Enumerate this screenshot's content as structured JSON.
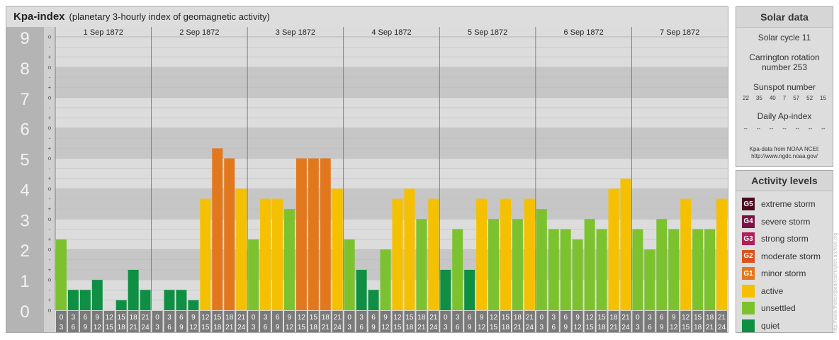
{
  "header": {
    "title": "Kpa-index",
    "subtitle": "(planetary 3-hourly index of geomagnetic activity)"
  },
  "chart_data": {
    "type": "bar",
    "ylim": [
      0,
      9
    ],
    "y_ticks": [
      "0",
      "1",
      "2",
      "3",
      "4",
      "5",
      "6",
      "7",
      "8",
      "9"
    ],
    "sub_ticks": [
      "o",
      "+",
      "-"
    ],
    "days": [
      "1 Sep 1872",
      "2 Sep 1872",
      "3 Sep 1872",
      "4 Sep 1872",
      "5 Sep 1872",
      "6 Sep 1872",
      "7 Sep 1872"
    ],
    "interval_labels": [
      [
        "0",
        "3"
      ],
      [
        "3",
        "6"
      ],
      [
        "6",
        "9"
      ],
      [
        "9",
        "12"
      ],
      [
        "12",
        "15"
      ],
      [
        "15",
        "18"
      ],
      [
        "18",
        "21"
      ],
      [
        "21",
        "24"
      ]
    ],
    "values": [
      [
        2.33,
        0.67,
        0.67,
        1.0,
        0.0,
        0.33,
        1.33,
        0.67
      ],
      [
        0.0,
        0.67,
        0.67,
        0.33,
        3.67,
        5.33,
        5.0,
        4.0
      ],
      [
        2.33,
        3.67,
        3.67,
        3.33,
        5.0,
        5.0,
        5.0,
        4.0
      ],
      [
        2.33,
        1.33,
        0.67,
        2.0,
        3.67,
        4.0,
        3.0,
        3.67
      ],
      [
        1.33,
        2.67,
        1.33,
        3.67,
        3.0,
        3.67,
        3.0,
        3.67
      ],
      [
        3.33,
        2.67,
        2.67,
        2.33,
        3.0,
        2.67,
        4.0,
        4.33
      ],
      [
        2.67,
        2.0,
        3.0,
        2.67,
        3.67,
        2.67,
        2.67,
        3.67
      ]
    ],
    "colors": {
      "quiet": "#0f8f44",
      "unsettled": "#7cc22f",
      "active": "#f5c000",
      "G1": "#e2781e",
      "G2": "#d9531e",
      "G3": "#b0205a",
      "G4": "#7a1245",
      "G5": "#4a0a20"
    }
  },
  "solar": {
    "title": "Solar data",
    "cycle": "Solar cycle 11",
    "rotation_line1": "Carrington rotation",
    "rotation_line2": "number 253",
    "sunspot_label": "Sunspot number",
    "sunspot_values": [
      "22",
      "35",
      "40",
      "7",
      "57",
      "52",
      "15"
    ],
    "ap_label": "Daily Ap-index",
    "ap_values": [
      "--",
      "--",
      "--",
      "--",
      "--",
      "--",
      "--"
    ],
    "source_line1": "Kpa-data from NOAA NCEI:",
    "source_line2": "http://www.ngdc.noaa.gov/"
  },
  "activity": {
    "title": "Activity levels",
    "levels": [
      {
        "badge": "G5",
        "label": "extreme storm",
        "color": "#4a0a20"
      },
      {
        "badge": "G4",
        "label": "severe storm",
        "color": "#7a1245"
      },
      {
        "badge": "G3",
        "label": "strong storm",
        "color": "#b0205a"
      },
      {
        "badge": "G2",
        "label": "moderate storm",
        "color": "#d9531e"
      },
      {
        "badge": "G1",
        "label": "minor storm",
        "color": "#e2781e"
      },
      {
        "badge": "",
        "label": "active",
        "color": "#f5c000"
      },
      {
        "badge": "",
        "label": "unsettled",
        "color": "#7cc22f"
      },
      {
        "badge": "",
        "label": "quiet",
        "color": "#0f8f44"
      }
    ]
  },
  "credit": "http://www.theeuropeancarrington.archive.org"
}
